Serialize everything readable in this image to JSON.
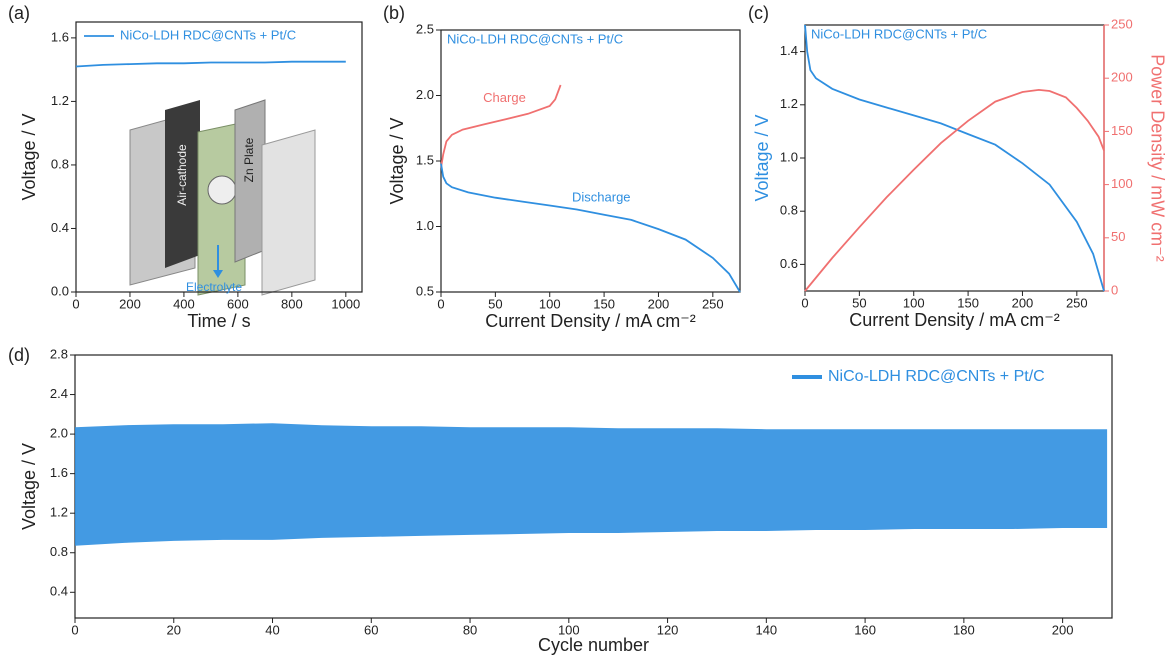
{
  "chart_data": [
    {
      "type": "line",
      "panel": "(a)",
      "xlabel": "Time / s",
      "ylabel": "Voltage / V",
      "legend": "upper left",
      "xlim": [
        0,
        1060
      ],
      "xticks": [
        0,
        200,
        400,
        600,
        800,
        1000
      ],
      "ylim": [
        0,
        1.7
      ],
      "yticks": [
        {
          "value": 0,
          "label": "0.0"
        },
        0.4,
        0.8,
        1.2,
        1.6
      ],
      "annotations": [
        "Air-cathode",
        "Zn Plate",
        "Electrolyte"
      ],
      "series": [
        {
          "name": "NiCo-LDH RDC@CNTs + Pt/C",
          "color": "#2f8fe0",
          "x": [
            0,
            100,
            200,
            300,
            400,
            500,
            600,
            700,
            800,
            900,
            1000
          ],
          "values": [
            1.42,
            1.43,
            1.435,
            1.44,
            1.44,
            1.445,
            1.445,
            1.445,
            1.45,
            1.45,
            1.45
          ]
        }
      ]
    },
    {
      "type": "line",
      "panel": "(b)",
      "label": "NiCo-LDH RDC@CNTs + Pt/C",
      "xlabel": "Current Density / mA cm⁻²",
      "ylabel": "Voltage / V",
      "xlim": [
        0,
        275
      ],
      "xticks": [
        0,
        50,
        100,
        150,
        200,
        250
      ],
      "ylim": [
        0.5,
        2.5
      ],
      "yticks": [
        0.5,
        {
          "value": 1,
          "label": "1.0"
        },
        1.5,
        {
          "value": 2,
          "label": "2.0"
        },
        2.5
      ],
      "series": [
        {
          "name": "Charge",
          "color": "#f07070",
          "x": [
            0,
            2,
            5,
            10,
            20,
            40,
            60,
            80,
            100,
            105,
            110
          ],
          "values": [
            1.45,
            1.55,
            1.65,
            1.7,
            1.74,
            1.78,
            1.82,
            1.86,
            1.92,
            1.97,
            2.08
          ]
        },
        {
          "name": "Discharge",
          "color": "#2f8fe0",
          "x": [
            0,
            2,
            5,
            10,
            25,
            50,
            75,
            100,
            125,
            150,
            175,
            200,
            225,
            250,
            265,
            275
          ],
          "values": [
            1.48,
            1.38,
            1.33,
            1.3,
            1.26,
            1.22,
            1.19,
            1.16,
            1.13,
            1.09,
            1.05,
            0.98,
            0.9,
            0.76,
            0.64,
            0.5
          ]
        }
      ]
    },
    {
      "type": "line",
      "panel": "(c)",
      "label": "NiCo-LDH RDC@CNTs + Pt/C",
      "xlabel": "Current Density / mA cm⁻²",
      "ylabel": "Voltage / V",
      "y2label": "Power Density / mW cm⁻²",
      "xlim": [
        0,
        275
      ],
      "xticks": [
        0,
        50,
        100,
        150,
        200,
        250
      ],
      "ylim": [
        0.5,
        1.5
      ],
      "yticks": [
        0.6,
        0.8,
        {
          "value": 1,
          "label": "1.0"
        },
        1.2,
        1.4
      ],
      "y2lim": [
        0,
        250
      ],
      "y2ticks": [
        0,
        50,
        100,
        150,
        200,
        250
      ],
      "series": [
        {
          "color": "#2f8fe0",
          "x": [
            0,
            2,
            5,
            10,
            25,
            50,
            75,
            100,
            125,
            150,
            175,
            200,
            225,
            250,
            265,
            275
          ],
          "values": [
            1.5,
            1.4,
            1.33,
            1.3,
            1.26,
            1.22,
            1.19,
            1.16,
            1.13,
            1.09,
            1.05,
            0.98,
            0.9,
            0.76,
            0.64,
            0.5
          ]
        },
        {
          "color": "#f07070",
          "axis": "y2",
          "x": [
            0,
            25,
            50,
            75,
            100,
            125,
            150,
            175,
            200,
            215,
            225,
            240,
            250,
            260,
            270,
            275
          ],
          "values": [
            0,
            31,
            60,
            88,
            114,
            139,
            160,
            178,
            187,
            189,
            188,
            182,
            172,
            160,
            145,
            132
          ]
        }
      ]
    },
    {
      "type": "band",
      "panel": "(d)",
      "xlabel": "Cycle number",
      "ylabel": "Voltage / V",
      "legend": "upper right",
      "xlim": [
        0,
        210
      ],
      "xticks": [
        0,
        20,
        40,
        60,
        80,
        100,
        120,
        140,
        160,
        180,
        200
      ],
      "ylim": [
        0.14,
        2.8
      ],
      "yticks": [
        0.4,
        0.8,
        1.2,
        1.6,
        {
          "value": 2,
          "label": "2.0"
        },
        2.4,
        2.8
      ],
      "series": [
        {
          "name": "NiCo-LDH RDC@CNTs + Pt/C",
          "color": "#2f8fe0",
          "x": [
            0,
            10,
            20,
            30,
            40,
            50,
            60,
            70,
            80,
            90,
            100,
            110,
            120,
            130,
            140,
            150,
            160,
            170,
            180,
            190,
            200,
            209
          ],
          "upper": [
            2.07,
            2.09,
            2.1,
            2.1,
            2.11,
            2.09,
            2.08,
            2.08,
            2.07,
            2.07,
            2.07,
            2.06,
            2.06,
            2.06,
            2.05,
            2.05,
            2.05,
            2.05,
            2.05,
            2.05,
            2.05,
            2.05
          ],
          "lower": [
            0.87,
            0.9,
            0.92,
            0.93,
            0.93,
            0.95,
            0.96,
            0.97,
            0.98,
            0.99,
            1.0,
            1.0,
            1.01,
            1.02,
            1.02,
            1.03,
            1.03,
            1.04,
            1.04,
            1.04,
            1.05,
            1.05
          ]
        }
      ]
    }
  ]
}
